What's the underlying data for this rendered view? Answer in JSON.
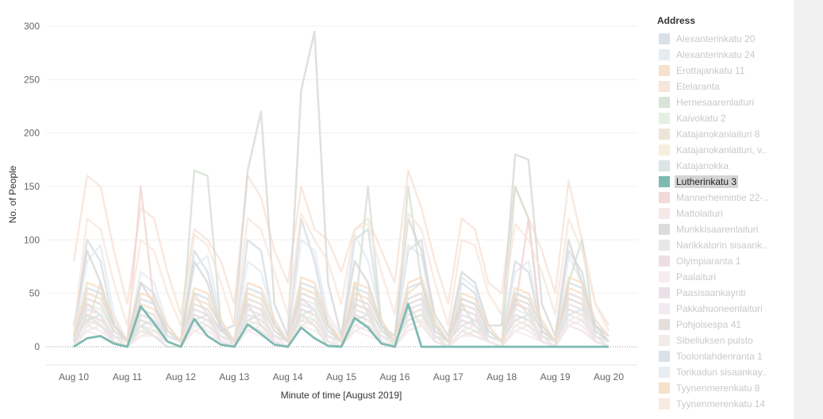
{
  "chart_data": {
    "type": "line",
    "title": "",
    "xlabel": "Minute of time [August 2019]",
    "ylabel": "No. of People",
    "x_start_day": 10,
    "x_step_days": 0.25,
    "xlim": [
      9.6,
      20.5
    ],
    "ylim": [
      -15,
      315
    ],
    "y_ticks": [
      0,
      50,
      100,
      150,
      200,
      250,
      300
    ],
    "x_ticks": [
      {
        "day": 10,
        "label": "Aug 10"
      },
      {
        "day": 11,
        "label": "Aug 11"
      },
      {
        "day": 12,
        "label": "Aug 12"
      },
      {
        "day": 13,
        "label": "Aug 13"
      },
      {
        "day": 14,
        "label": "Aug 14"
      },
      {
        "day": 15,
        "label": "Aug 15"
      },
      {
        "day": 16,
        "label": "Aug 16"
      },
      {
        "day": 17,
        "label": "Aug 17"
      },
      {
        "day": 18,
        "label": "Aug 18"
      },
      {
        "day": 19,
        "label": "Aug 19"
      },
      {
        "day": 20,
        "label": "Aug 20"
      }
    ],
    "grid": true,
    "legend_title": "Address",
    "legend_position": "right",
    "highlighted": "Lutherinkatu 3",
    "series": [
      {
        "name": "Alexanterinkatu 20",
        "color": "#d3dbe3",
        "values": [
          5,
          100,
          80,
          20,
          5,
          60,
          50,
          15,
          5,
          90,
          70,
          20,
          5,
          100,
          90,
          20,
          5,
          120,
          80,
          20,
          5,
          100,
          110,
          20,
          5,
          90,
          100,
          20,
          5,
          60,
          50,
          10,
          5,
          80,
          70,
          15,
          5,
          90,
          70,
          15,
          5
        ]
      },
      {
        "name": "Alexanterinkatu 24",
        "color": "#e3e9ef",
        "values": [
          10,
          80,
          95,
          30,
          5,
          70,
          60,
          20,
          5,
          75,
          85,
          25,
          5,
          80,
          70,
          25,
          5,
          100,
          90,
          30,
          10,
          105,
          80,
          25,
          5,
          95,
          85,
          20,
          5,
          65,
          55,
          15,
          5,
          70,
          80,
          20,
          5,
          85,
          60,
          20,
          5
        ]
      },
      {
        "name": "Erottajankatu 11",
        "color": "#f4dcc4",
        "values": [
          10,
          50,
          45,
          20,
          5,
          40,
          35,
          15,
          5,
          45,
          40,
          20,
          5,
          50,
          45,
          20,
          5,
          55,
          50,
          20,
          5,
          50,
          45,
          20,
          5,
          50,
          60,
          20,
          5,
          45,
          40,
          15,
          5,
          50,
          45,
          20,
          5,
          55,
          50,
          20,
          5
        ]
      },
      {
        "name": "Etelaranta",
        "color": "#f5e2d5",
        "values": [
          80,
          160,
          150,
          90,
          40,
          130,
          120,
          70,
          30,
          110,
          100,
          80,
          40,
          160,
          140,
          90,
          60,
          150,
          110,
          100,
          70,
          110,
          120,
          90,
          60,
          165,
          130,
          80,
          40,
          120,
          110,
          60,
          50,
          150,
          120,
          90,
          50,
          155,
          100,
          40,
          20
        ]
      },
      {
        "name": "Hernesaarenlaituri",
        "color": "#d1dfd0",
        "values": [
          0,
          30,
          20,
          5,
          0,
          20,
          10,
          0,
          0,
          165,
          160,
          20,
          0,
          40,
          20,
          5,
          0,
          30,
          20,
          0,
          0,
          30,
          150,
          20,
          0,
          150,
          60,
          10,
          0,
          40,
          20,
          5,
          0,
          150,
          120,
          10,
          0,
          60,
          100,
          10,
          0
        ]
      },
      {
        "name": "Kaivokatu 2",
        "color": "#dfeddc",
        "values": [
          5,
          40,
          35,
          15,
          5,
          30,
          25,
          10,
          5,
          35,
          30,
          15,
          5,
          40,
          35,
          15,
          5,
          45,
          40,
          15,
          5,
          40,
          35,
          15,
          5,
          40,
          45,
          15,
          5,
          35,
          30,
          10,
          5,
          40,
          35,
          15,
          5,
          45,
          40,
          15,
          5
        ]
      },
      {
        "name": "Katajanokanlaituri 8",
        "color": "#e8e2cf",
        "values": [
          0,
          20,
          60,
          10,
          0,
          15,
          10,
          5,
          0,
          50,
          30,
          5,
          0,
          20,
          15,
          5,
          0,
          25,
          20,
          5,
          0,
          60,
          30,
          5,
          0,
          40,
          20,
          5,
          0,
          15,
          10,
          5,
          0,
          45,
          30,
          5,
          0,
          20,
          15,
          5,
          0
        ]
      },
      {
        "name": "Katajanokanlaituri, v..",
        "color": "#f5ecd9",
        "values": [
          5,
          30,
          25,
          10,
          5,
          25,
          20,
          10,
          5,
          30,
          25,
          10,
          5,
          30,
          25,
          10,
          5,
          35,
          30,
          10,
          5,
          30,
          25,
          10,
          5,
          30,
          35,
          10,
          5,
          25,
          20,
          10,
          5,
          30,
          25,
          10,
          5,
          35,
          30,
          10,
          5
        ]
      },
      {
        "name": "Katajanokka",
        "color": "#d5e1e1",
        "values": [
          5,
          25,
          30,
          10,
          5,
          20,
          25,
          10,
          5,
          25,
          30,
          10,
          5,
          25,
          30,
          10,
          5,
          30,
          35,
          10,
          5,
          25,
          30,
          10,
          5,
          25,
          30,
          10,
          5,
          20,
          25,
          10,
          5,
          25,
          30,
          10,
          5,
          30,
          35,
          10,
          5
        ]
      },
      {
        "name": "Lutherinkatu 3",
        "color": "#7fbab2",
        "values": [
          0,
          8,
          10,
          3,
          0,
          38,
          22,
          5,
          0,
          26,
          10,
          2,
          0,
          21,
          12,
          2,
          0,
          18,
          8,
          1,
          0,
          27,
          18,
          3,
          0,
          40,
          0,
          0,
          0,
          0,
          0,
          0,
          0,
          0,
          0,
          0,
          0,
          0,
          0,
          0,
          0
        ]
      },
      {
        "name": "Mannerheimintie 22-..",
        "color": "#f0d3d3",
        "values": [
          5,
          35,
          30,
          10,
          5,
          150,
          40,
          10,
          5,
          35,
          30,
          10,
          5,
          35,
          30,
          10,
          5,
          40,
          35,
          10,
          5,
          35,
          30,
          10,
          5,
          35,
          40,
          10,
          5,
          30,
          25,
          10,
          5,
          35,
          120,
          10,
          5,
          40,
          35,
          10,
          5
        ]
      },
      {
        "name": "Mattolaituri",
        "color": "#f6e4e4",
        "values": [
          0,
          15,
          20,
          5,
          0,
          10,
          15,
          5,
          0,
          15,
          20,
          5,
          0,
          15,
          20,
          5,
          0,
          20,
          25,
          5,
          0,
          15,
          20,
          5,
          0,
          15,
          20,
          5,
          0,
          10,
          15,
          5,
          0,
          15,
          20,
          5,
          0,
          20,
          25,
          5,
          0
        ]
      },
      {
        "name": "Munkkisaarenlaituri",
        "color": "#d6d6d6",
        "values": [
          20,
          90,
          60,
          20,
          5,
          60,
          40,
          10,
          5,
          80,
          60,
          15,
          20,
          165,
          220,
          40,
          10,
          240,
          295,
          60,
          10,
          80,
          60,
          20,
          10,
          120,
          90,
          30,
          10,
          70,
          60,
          20,
          20,
          180,
          175,
          40,
          10,
          100,
          60,
          20,
          10
        ]
      },
      {
        "name": "Narikkatorin sisaank..",
        "color": "#e4e4e2",
        "values": [
          5,
          25,
          20,
          10,
          5,
          20,
          15,
          10,
          5,
          25,
          20,
          10,
          5,
          25,
          20,
          10,
          5,
          30,
          25,
          10,
          5,
          25,
          20,
          10,
          5,
          25,
          30,
          10,
          5,
          20,
          15,
          10,
          5,
          25,
          20,
          10,
          5,
          30,
          25,
          10,
          5
        ]
      },
      {
        "name": "Olympiaranta 1",
        "color": "#ecd8dd",
        "values": [
          0,
          40,
          30,
          5,
          0,
          30,
          25,
          5,
          0,
          35,
          30,
          5,
          0,
          40,
          35,
          5,
          0,
          45,
          35,
          5,
          0,
          40,
          35,
          5,
          0,
          40,
          45,
          5,
          0,
          35,
          30,
          5,
          0,
          40,
          35,
          5,
          0,
          45,
          40,
          5,
          0
        ]
      },
      {
        "name": "Paalaituri",
        "color": "#f6e9ec",
        "values": [
          0,
          15,
          10,
          5,
          0,
          10,
          10,
          5,
          0,
          15,
          10,
          5,
          0,
          15,
          10,
          5,
          0,
          20,
          15,
          5,
          0,
          15,
          10,
          5,
          0,
          15,
          20,
          5,
          0,
          10,
          10,
          5,
          0,
          15,
          10,
          5,
          0,
          20,
          15,
          5,
          0
        ]
      },
      {
        "name": "Paasisaankaynti",
        "color": "#e8dbe3",
        "values": [
          5,
          30,
          25,
          10,
          5,
          25,
          20,
          10,
          5,
          30,
          25,
          10,
          5,
          30,
          25,
          10,
          5,
          35,
          30,
          10,
          5,
          30,
          25,
          10,
          5,
          30,
          35,
          10,
          5,
          25,
          20,
          10,
          5,
          30,
          25,
          10,
          5,
          35,
          30,
          10,
          5
        ]
      },
      {
        "name": "Pakkahuoneenlaituri",
        "color": "#efe6ee",
        "values": [
          0,
          20,
          15,
          5,
          0,
          15,
          10,
          5,
          0,
          20,
          15,
          5,
          0,
          20,
          15,
          5,
          0,
          25,
          20,
          5,
          0,
          20,
          15,
          5,
          0,
          20,
          25,
          5,
          0,
          15,
          10,
          5,
          0,
          20,
          15,
          5,
          0,
          25,
          20,
          5,
          0
        ]
      },
      {
        "name": "Pohjoisespa 41",
        "color": "#e0d9d6",
        "values": [
          5,
          45,
          40,
          15,
          5,
          35,
          30,
          10,
          5,
          40,
          35,
          15,
          5,
          45,
          40,
          15,
          5,
          50,
          45,
          15,
          5,
          45,
          40,
          15,
          5,
          45,
          50,
          15,
          5,
          40,
          35,
          10,
          5,
          45,
          40,
          15,
          5,
          50,
          45,
          15,
          5
        ]
      },
      {
        "name": "Sibeliuksen puisto",
        "color": "#efe9e5",
        "values": [
          0,
          20,
          25,
          10,
          0,
          15,
          20,
          5,
          0,
          20,
          25,
          10,
          0,
          20,
          25,
          10,
          0,
          25,
          30,
          10,
          0,
          20,
          25,
          10,
          0,
          20,
          25,
          10,
          0,
          15,
          20,
          5,
          0,
          20,
          25,
          10,
          0,
          25,
          30,
          10,
          0
        ]
      },
      {
        "name": "Toolonlahdenranta 1",
        "color": "#d3dde4",
        "values": [
          5,
          55,
          50,
          20,
          5,
          45,
          40,
          15,
          5,
          50,
          45,
          20,
          5,
          55,
          50,
          20,
          5,
          60,
          55,
          20,
          5,
          55,
          50,
          20,
          5,
          55,
          60,
          20,
          5,
          45,
          40,
          15,
          5,
          50,
          45,
          20,
          5,
          60,
          55,
          20,
          5
        ]
      },
      {
        "name": "Torikadun sisaankay..",
        "color": "#e4eaef",
        "values": [
          5,
          35,
          30,
          10,
          5,
          30,
          25,
          10,
          5,
          35,
          30,
          10,
          5,
          35,
          30,
          10,
          5,
          40,
          35,
          10,
          5,
          35,
          30,
          10,
          5,
          35,
          40,
          10,
          5,
          30,
          25,
          10,
          5,
          35,
          30,
          10,
          5,
          40,
          35,
          10,
          5
        ]
      },
      {
        "name": "Tyynenmerenkatu 8",
        "color": "#f5dcc2",
        "values": [
          10,
          60,
          55,
          25,
          5,
          50,
          45,
          20,
          5,
          55,
          50,
          25,
          5,
          60,
          55,
          25,
          5,
          65,
          60,
          25,
          5,
          60,
          55,
          25,
          5,
          60,
          65,
          25,
          5,
          50,
          45,
          20,
          5,
          55,
          50,
          25,
          5,
          65,
          60,
          25,
          10
        ]
      },
      {
        "name": "Tyynenmerenkatu 14",
        "color": "#f7e6da",
        "values": [
          15,
          120,
          110,
          60,
          20,
          100,
          90,
          50,
          20,
          105,
          95,
          60,
          20,
          120,
          110,
          70,
          30,
          125,
          100,
          80,
          40,
          110,
          115,
          70,
          30,
          125,
          110,
          60,
          20,
          100,
          95,
          50,
          30,
          115,
          100,
          70,
          30,
          120,
          90,
          40,
          15
        ]
      }
    ]
  }
}
